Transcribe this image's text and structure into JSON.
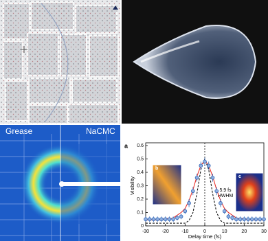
{
  "labels": {
    "left": "Grease",
    "right": "NaCMC"
  },
  "plot": {
    "panel": "a",
    "inset_left": "b",
    "inset_right": "c",
    "annotation": "5.9 fs\nHWHM",
    "xlabel": "Delay time (fs)",
    "ylabel": "Visibility",
    "xlim": [
      -30,
      30
    ],
    "xticks": [
      -30,
      -20,
      -10,
      0,
      10,
      20,
      30
    ],
    "ylim": [
      0,
      0.6
    ],
    "yticks": [
      0,
      0.1,
      0.2,
      0.3,
      0.4,
      0.5,
      0.6
    ],
    "x": [
      -30,
      -28,
      -26,
      -24,
      -22,
      -20,
      -18,
      -16,
      -14,
      -12,
      -10,
      -8,
      -6,
      -4,
      -2,
      0,
      2,
      4,
      6,
      8,
      10,
      12,
      14,
      16,
      18,
      20,
      22,
      24,
      26,
      28,
      30
    ],
    "series": [
      {
        "style": "dashed",
        "color": "#111111",
        "values": [
          0.02,
          0.02,
          0.02,
          0.02,
          0.02,
          0.02,
          0.02,
          0.02,
          0.02,
          0.02,
          0.02,
          0.04,
          0.1,
          0.24,
          0.42,
          0.5,
          0.42,
          0.24,
          0.1,
          0.04,
          0.02,
          0.02,
          0.02,
          0.02,
          0.02,
          0.02,
          0.02,
          0.02,
          0.02,
          0.02,
          0.02
        ]
      },
      {
        "style": "line",
        "color": "#e8312a",
        "values": [
          0.04,
          0.05,
          0.04,
          0.05,
          0.04,
          0.06,
          0.05,
          0.06,
          0.08,
          0.1,
          0.13,
          0.19,
          0.27,
          0.37,
          0.45,
          0.49,
          0.45,
          0.37,
          0.27,
          0.19,
          0.13,
          0.1,
          0.08,
          0.06,
          0.05,
          0.06,
          0.04,
          0.05,
          0.04,
          0.05,
          0.04
        ]
      },
      {
        "style": "points",
        "color": "#2f63b5",
        "values": [
          0.05,
          0.05,
          0.05,
          0.05,
          0.05,
          0.05,
          0.05,
          0.05,
          0.06,
          0.07,
          0.11,
          0.17,
          0.26,
          0.36,
          0.45,
          0.48,
          0.45,
          0.36,
          0.26,
          0.17,
          0.11,
          0.07,
          0.06,
          0.05,
          0.05,
          0.05,
          0.05,
          0.05,
          0.05,
          0.05,
          0.05
        ],
        "errors": [
          0.02,
          0.02,
          0.02,
          0.02,
          0.02,
          0.02,
          0.02,
          0.02,
          0.02,
          0.02,
          0.02,
          0.03,
          0.03,
          0.03,
          0.03,
          0.03,
          0.03,
          0.03,
          0.03,
          0.03,
          0.02,
          0.02,
          0.02,
          0.02,
          0.02,
          0.02,
          0.02,
          0.02,
          0.02,
          0.02,
          0.02
        ]
      }
    ]
  }
}
